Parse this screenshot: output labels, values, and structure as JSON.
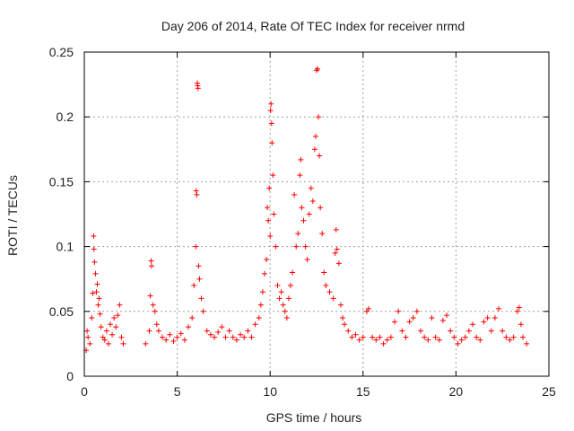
{
  "chart_data": {
    "type": "scatter",
    "title": "Day 206 of 2014, Rate Of TEC Index for receiver nrmd",
    "xlabel": "GPS time / hours",
    "ylabel": "ROTI / TECUs",
    "xlim": [
      0,
      25
    ],
    "ylim": [
      0,
      0.25
    ],
    "x_ticks": [
      0,
      5,
      10,
      15,
      20,
      25
    ],
    "x_tick_labels": [
      "0",
      "5",
      "10",
      "15",
      "20",
      "25"
    ],
    "y_ticks": [
      0,
      0.05,
      0.1,
      0.15,
      0.2,
      0.25
    ],
    "y_tick_labels": [
      "0",
      "0.05",
      "0.1",
      "0.15",
      "0.2",
      "0.25"
    ],
    "grid": true,
    "marker": "+",
    "color": "#ff0000",
    "series": [
      {
        "points": [
          [
            0.1,
            0.02
          ],
          [
            0.15,
            0.035
          ],
          [
            0.2,
            0.03
          ],
          [
            0.3,
            0.025
          ],
          [
            0.4,
            0.045
          ],
          [
            0.45,
            0.064
          ],
          [
            0.5,
            0.108
          ],
          [
            0.52,
            0.098
          ],
          [
            0.55,
            0.088
          ],
          [
            0.6,
            0.079
          ],
          [
            0.65,
            0.065
          ],
          [
            0.7,
            0.071
          ],
          [
            0.75,
            0.055
          ],
          [
            0.8,
            0.06
          ],
          [
            0.85,
            0.048
          ],
          [
            0.9,
            0.038
          ],
          [
            1.0,
            0.03
          ],
          [
            1.1,
            0.028
          ],
          [
            1.2,
            0.035
          ],
          [
            1.3,
            0.025
          ],
          [
            1.4,
            0.04
          ],
          [
            1.5,
            0.032
          ],
          [
            1.6,
            0.045
          ],
          [
            1.7,
            0.038
          ],
          [
            1.8,
            0.047
          ],
          [
            1.9,
            0.055
          ],
          [
            2.0,
            0.03
          ],
          [
            2.1,
            0.025
          ],
          [
            3.3,
            0.025
          ],
          [
            3.5,
            0.035
          ],
          [
            3.55,
            0.062
          ],
          [
            3.6,
            0.089
          ],
          [
            3.62,
            0.085
          ],
          [
            3.7,
            0.055
          ],
          [
            3.8,
            0.05
          ],
          [
            3.9,
            0.04
          ],
          [
            4.0,
            0.035
          ],
          [
            4.2,
            0.03
          ],
          [
            4.4,
            0.028
          ],
          [
            4.6,
            0.032
          ],
          [
            4.8,
            0.027
          ],
          [
            5.0,
            0.03
          ],
          [
            5.2,
            0.033
          ],
          [
            5.4,
            0.028
          ],
          [
            5.6,
            0.038
          ],
          [
            5.8,
            0.045
          ],
          [
            5.9,
            0.07
          ],
          [
            6.0,
            0.1
          ],
          [
            6.02,
            0.143
          ],
          [
            6.05,
            0.14
          ],
          [
            6.08,
            0.226
          ],
          [
            6.1,
            0.224
          ],
          [
            6.12,
            0.222
          ],
          [
            6.15,
            0.085
          ],
          [
            6.2,
            0.075
          ],
          [
            6.3,
            0.06
          ],
          [
            6.4,
            0.05
          ],
          [
            6.6,
            0.035
          ],
          [
            6.8,
            0.032
          ],
          [
            7.0,
            0.03
          ],
          [
            7.2,
            0.034
          ],
          [
            7.4,
            0.038
          ],
          [
            7.6,
            0.03
          ],
          [
            7.8,
            0.035
          ],
          [
            8.0,
            0.03
          ],
          [
            8.2,
            0.028
          ],
          [
            8.4,
            0.032
          ],
          [
            8.6,
            0.03
          ],
          [
            8.8,
            0.035
          ],
          [
            9.0,
            0.03
          ],
          [
            9.2,
            0.04
          ],
          [
            9.4,
            0.045
          ],
          [
            9.5,
            0.055
          ],
          [
            9.6,
            0.065
          ],
          [
            9.7,
            0.079
          ],
          [
            9.8,
            0.09
          ],
          [
            9.85,
            0.13
          ],
          [
            9.9,
            0.12
          ],
          [
            9.95,
            0.145
          ],
          [
            10.0,
            0.108
          ],
          [
            10.02,
            0.205
          ],
          [
            10.05,
            0.21
          ],
          [
            10.08,
            0.195
          ],
          [
            10.1,
            0.18
          ],
          [
            10.15,
            0.155
          ],
          [
            10.2,
            0.125
          ],
          [
            10.3,
            0.1
          ],
          [
            10.4,
            0.07
          ],
          [
            10.5,
            0.06
          ],
          [
            10.6,
            0.065
          ],
          [
            10.7,
            0.055
          ],
          [
            10.8,
            0.05
          ],
          [
            10.9,
            0.045
          ],
          [
            11.0,
            0.06
          ],
          [
            11.1,
            0.07
          ],
          [
            11.2,
            0.08
          ],
          [
            11.3,
            0.14
          ],
          [
            11.4,
            0.1
          ],
          [
            11.5,
            0.11
          ],
          [
            11.6,
            0.155
          ],
          [
            11.65,
            0.167
          ],
          [
            11.7,
            0.13
          ],
          [
            11.8,
            0.12
          ],
          [
            11.9,
            0.1
          ],
          [
            12.0,
            0.09
          ],
          [
            12.1,
            0.125
          ],
          [
            12.2,
            0.145
          ],
          [
            12.3,
            0.135
          ],
          [
            12.4,
            0.175
          ],
          [
            12.45,
            0.185
          ],
          [
            12.5,
            0.236
          ],
          [
            12.55,
            0.237
          ],
          [
            12.6,
            0.2
          ],
          [
            12.65,
            0.17
          ],
          [
            12.7,
            0.13
          ],
          [
            12.8,
            0.11
          ],
          [
            12.9,
            0.08
          ],
          [
            13.0,
            0.07
          ],
          [
            13.2,
            0.065
          ],
          [
            13.4,
            0.06
          ],
          [
            13.5,
            0.095
          ],
          [
            13.55,
            0.113
          ],
          [
            13.6,
            0.098
          ],
          [
            13.7,
            0.087
          ],
          [
            13.8,
            0.055
          ],
          [
            13.9,
            0.045
          ],
          [
            14.0,
            0.04
          ],
          [
            14.2,
            0.035
          ],
          [
            14.4,
            0.03
          ],
          [
            14.6,
            0.032
          ],
          [
            14.8,
            0.028
          ],
          [
            15.0,
            0.03
          ],
          [
            15.2,
            0.05
          ],
          [
            15.3,
            0.052
          ],
          [
            15.5,
            0.03
          ],
          [
            15.7,
            0.028
          ],
          [
            15.9,
            0.03
          ],
          [
            16.1,
            0.025
          ],
          [
            16.3,
            0.028
          ],
          [
            16.5,
            0.03
          ],
          [
            16.7,
            0.042
          ],
          [
            16.9,
            0.05
          ],
          [
            17.1,
            0.035
          ],
          [
            17.3,
            0.03
          ],
          [
            17.5,
            0.042
          ],
          [
            17.7,
            0.045
          ],
          [
            17.9,
            0.05
          ],
          [
            18.1,
            0.035
          ],
          [
            18.3,
            0.03
          ],
          [
            18.5,
            0.028
          ],
          [
            18.7,
            0.045
          ],
          [
            18.9,
            0.03
          ],
          [
            19.1,
            0.028
          ],
          [
            19.3,
            0.043
          ],
          [
            19.5,
            0.047
          ],
          [
            19.7,
            0.035
          ],
          [
            19.9,
            0.03
          ],
          [
            20.1,
            0.025
          ],
          [
            20.3,
            0.028
          ],
          [
            20.5,
            0.03
          ],
          [
            20.7,
            0.035
          ],
          [
            20.9,
            0.04
          ],
          [
            21.1,
            0.03
          ],
          [
            21.3,
            0.028
          ],
          [
            21.5,
            0.042
          ],
          [
            21.7,
            0.045
          ],
          [
            21.9,
            0.035
          ],
          [
            22.1,
            0.045
          ],
          [
            22.3,
            0.052
          ],
          [
            22.5,
            0.035
          ],
          [
            22.7,
            0.03
          ],
          [
            22.9,
            0.028
          ],
          [
            23.1,
            0.03
          ],
          [
            23.3,
            0.05
          ],
          [
            23.4,
            0.053
          ],
          [
            23.5,
            0.04
          ],
          [
            23.6,
            0.03
          ],
          [
            23.8,
            0.025
          ]
        ]
      }
    ]
  }
}
